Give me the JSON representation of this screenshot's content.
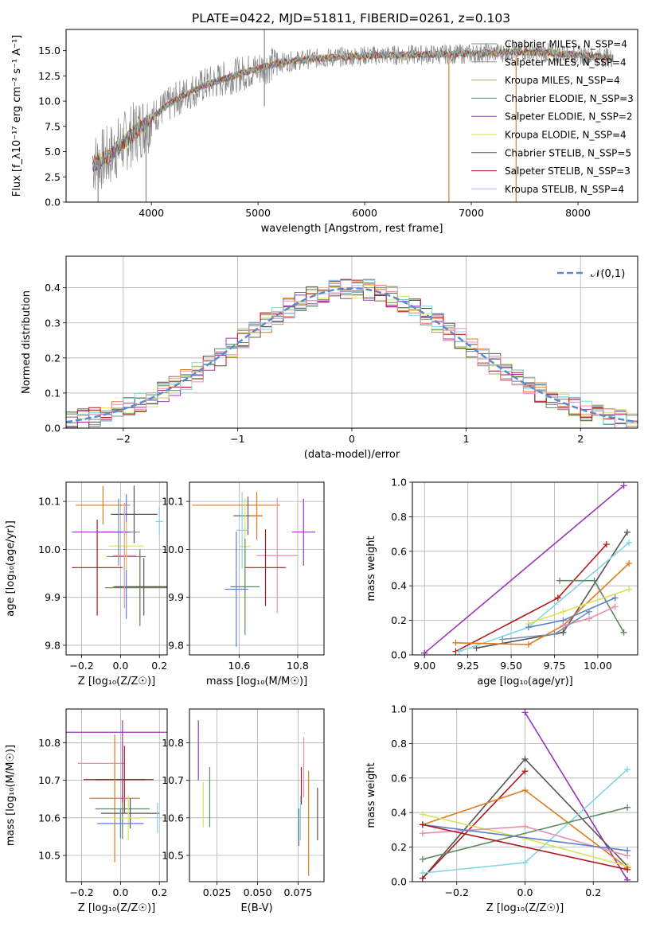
{
  "title": "PLATE=0422, MJD=51811, FIBERID=0261, z=0.103",
  "colors": [
    "#7b8ea8",
    "#e07b20",
    "#b8a26a",
    "#5d8a62",
    "#9b35b8",
    "#d8e35a",
    "#555555",
    "#b01818",
    "#7fd8e0",
    "#e98fae",
    "#5a7fd0",
    "#888888"
  ],
  "chart_data": [
    {
      "id": "spectrum",
      "type": "line",
      "xlabel": "wavelength [Angstrom, rest frame]",
      "ylabel": "Flux [f_λ10⁻¹⁷ erg cm⁻² s⁻¹ A⁻¹]",
      "xlim": [
        3200,
        8560
      ],
      "ylim": [
        0,
        17.1
      ],
      "xticks": [
        4000,
        5000,
        6000,
        7000,
        8000
      ],
      "yticks": [
        0.0,
        2.5,
        5.0,
        7.5,
        10.0,
        12.5,
        15.0
      ],
      "grid": false,
      "legend": [
        "Chabrier MILES, N_SSP=4",
        "Salpeter MILES, N_SSP=4",
        "Kroupa MILES, N_SSP=4",
        "Chabrier ELODIE, N_SSP=3",
        "Salpeter ELODIE, N_SSP=2",
        "Kroupa ELODIE, N_SSP=4",
        "Chabrier STELIB, N_SSP=5",
        "Salpeter STELIB, N_SSP=3",
        "Kroupa STELIB, N_SSP=4"
      ],
      "legend_loc": "lower-right",
      "continuum": {
        "x": [
          3450,
          3600,
          3800,
          3950,
          4100,
          4300,
          4500,
          4800,
          5000,
          5200,
          5500,
          6000,
          6500,
          7000,
          7500,
          8000,
          8300
        ],
        "y": [
          3.8,
          4.5,
          6.5,
          7.8,
          9.2,
          10.6,
          11.6,
          12.6,
          13.2,
          13.8,
          14.2,
          14.5,
          14.6,
          14.7,
          14.9,
          14.6,
          14.3
        ]
      }
    },
    {
      "id": "residuals",
      "type": "histogram",
      "xlabel": "(data-model)/error",
      "ylabel": "Normed distribution",
      "xlim": [
        -2.5,
        2.5
      ],
      "ylim": [
        0,
        0.49
      ],
      "xticks": [
        -2,
        -1,
        0,
        1,
        2
      ],
      "yticks": [
        0.0,
        0.1,
        0.2,
        0.3,
        0.4
      ],
      "grid": true,
      "legend": [
        "𝒩(0,1)"
      ],
      "legend_loc": "top-right",
      "gaussian": {
        "mean": 0,
        "sigma": 1
      }
    },
    {
      "id": "age-vs-Z",
      "type": "errorbar",
      "xlabel": "Z [log₁₀(Z/Z☉)]",
      "ylabel": "age  [log₁₀(age/yr)]",
      "xlim": [
        -0.28,
        0.24
      ],
      "ylim": [
        9.78,
        10.14
      ],
      "xticks": [
        -0.2,
        0.0,
        0.2
      ],
      "yticks": [
        9.8,
        9.9,
        10.0,
        10.1
      ],
      "grid": true,
      "points": [
        {
          "x": 0.1,
          "xerr": 0.14,
          "y": 9.922,
          "yerr": 0.07,
          "c": 1
        },
        {
          "x": 0.1,
          "xerr": 0.18,
          "y": 9.92,
          "yerr": 0.08,
          "c": 3
        },
        {
          "x": 0.12,
          "xerr": 0.15,
          "y": 9.922,
          "yerr": 0.06,
          "c": 6
        },
        {
          "x": 0.03,
          "xerr": 0.1,
          "y": 9.985,
          "yerr": 0.13,
          "c": 10
        },
        {
          "x": -0.12,
          "xerr": 0.13,
          "y": 9.962,
          "yerr": 0.1,
          "c": 7
        },
        {
          "x": -0.09,
          "xerr": 0.14,
          "y": 10.092,
          "yerr": 0.04,
          "c": 1
        },
        {
          "x": 0.07,
          "xerr": 0.12,
          "y": 10.073,
          "yerr": 0.06,
          "c": 6
        },
        {
          "x": 0.03,
          "xerr": 0.09,
          "y": 10.007,
          "yerr": 0.05,
          "c": 5
        },
        {
          "x": 0.2,
          "xerr": 0.02,
          "y": 10.058,
          "yerr": 0.03,
          "c": 8
        },
        {
          "x": -0.01,
          "xerr": 0.11,
          "y": 10.036,
          "yerr": 0.07,
          "c": 0
        },
        {
          "x": -0.1,
          "xerr": 0.15,
          "y": 10.036,
          "yerr": 0.0,
          "c": 4
        },
        {
          "x": 0.02,
          "xerr": 0.06,
          "y": 9.987,
          "yerr": 0.11,
          "c": 9
        }
      ]
    },
    {
      "id": "age-vs-mass",
      "type": "errorbar",
      "xlabel": "mass [log₁₀(M/M☉)]",
      "ylabel": "",
      "xlim": [
        10.43,
        10.89
      ],
      "ylim": [
        9.78,
        10.14
      ],
      "xticks": [
        10.6,
        10.8
      ],
      "yticks": [
        9.8,
        9.9,
        10.0,
        10.1
      ],
      "grid": true,
      "points": [
        {
          "x": 10.59,
          "xerr": 0.15,
          "y": 10.092,
          "yerr": 0.0,
          "c": 1
        },
        {
          "x": 10.63,
          "xerr": 0.05,
          "y": 10.07,
          "yerr": 0.04,
          "c": 6
        },
        {
          "x": 10.66,
          "xerr": 0.02,
          "y": 10.07,
          "yerr": 0.05,
          "c": 1
        },
        {
          "x": 10.62,
          "xerr": 0.02,
          "y": 10.006,
          "yerr": 0.1,
          "c": 5
        },
        {
          "x": 10.73,
          "xerr": 0.07,
          "y": 9.987,
          "yerr": 0.12,
          "c": 9
        },
        {
          "x": 10.82,
          "xerr": 0.04,
          "y": 10.036,
          "yerr": 0.07,
          "c": 4
        },
        {
          "x": 10.69,
          "xerr": 0.07,
          "y": 9.962,
          "yerr": 0.08,
          "c": 7
        },
        {
          "x": 10.62,
          "xerr": 0.05,
          "y": 9.922,
          "yerr": 0.1,
          "c": 3
        },
        {
          "x": 10.59,
          "xerr": 0.04,
          "y": 9.917,
          "yerr": 0.12,
          "c": 10
        },
        {
          "x": 10.61,
          "xerr": 0.02,
          "y": 10.04,
          "yerr": 0.08,
          "c": 8
        }
      ]
    },
    {
      "id": "weight-vs-age",
      "type": "line",
      "xlabel": "age  [log₁₀(age/yr)]",
      "ylabel": "mass weight",
      "xlim": [
        8.93,
        10.23
      ],
      "ylim": [
        0,
        1.0
      ],
      "xticks": [
        9.0,
        9.25,
        9.5,
        9.75,
        10.0
      ],
      "yticks": [
        0.0,
        0.2,
        0.4,
        0.6,
        0.8,
        1.0
      ],
      "grid": true,
      "series": [
        {
          "c": 4,
          "x": [
            9.0,
            10.15
          ],
          "y": [
            0.01,
            0.98
          ]
        },
        {
          "c": 7,
          "x": [
            9.18,
            9.77,
            10.05
          ],
          "y": [
            0.02,
            0.33,
            0.64
          ]
        },
        {
          "c": 6,
          "x": [
            9.3,
            9.8,
            10.17
          ],
          "y": [
            0.04,
            0.13,
            0.71
          ]
        },
        {
          "c": 8,
          "x": [
            9.2,
            9.6,
            10.18
          ],
          "y": [
            0.02,
            0.16,
            0.65
          ]
        },
        {
          "c": 1,
          "x": [
            9.18,
            9.6,
            9.8,
            10.18
          ],
          "y": [
            0.07,
            0.06,
            0.17,
            0.53
          ]
        },
        {
          "c": 3,
          "x": [
            9.78,
            9.98,
            10.15
          ],
          "y": [
            0.43,
            0.43,
            0.13
          ]
        },
        {
          "c": 5,
          "x": [
            9.6,
            9.8,
            10.18
          ],
          "y": [
            0.18,
            0.25,
            0.38
          ]
        },
        {
          "c": 10,
          "x": [
            9.6,
            9.8,
            10.1
          ],
          "y": [
            0.16,
            0.2,
            0.33
          ]
        },
        {
          "c": 9,
          "x": [
            9.8,
            9.95,
            10.1
          ],
          "y": [
            0.17,
            0.21,
            0.28
          ]
        },
        {
          "c": 0,
          "x": [
            9.45,
            9.75,
            9.95
          ],
          "y": [
            0.09,
            0.12,
            0.25
          ]
        }
      ]
    },
    {
      "id": "mass-vs-Z",
      "type": "errorbar",
      "xlabel": "Z [log₁₀(Z/Z☉)]",
      "ylabel": "mass [log₁₀(M/M☉)]",
      "xlim": [
        -0.28,
        0.24
      ],
      "ylim": [
        10.43,
        10.89
      ],
      "xticks": [
        -0.2,
        0.0,
        0.2
      ],
      "yticks": [
        10.5,
        10.6,
        10.7,
        10.8
      ],
      "grid": true,
      "points": [
        {
          "x": -0.02,
          "xerr": 0.26,
          "y": 10.828,
          "yerr": 0.0,
          "c": 4
        },
        {
          "x": -0.1,
          "xerr": 0.12,
          "y": 10.745,
          "yerr": 0.0,
          "c": 9
        },
        {
          "x": -0.03,
          "xerr": 0.16,
          "y": 10.702,
          "yerr": 0.0,
          "c": 7
        },
        {
          "x": 0.02,
          "xerr": 0.15,
          "y": 10.702,
          "yerr": 0.09,
          "c": 7
        },
        {
          "x": -0.03,
          "xerr": 0.13,
          "y": 10.652,
          "yerr": 0.17,
          "c": 1
        },
        {
          "x": 0.01,
          "xerr": 0.14,
          "y": 10.624,
          "yerr": 0.08,
          "c": 3
        },
        {
          "x": 0.05,
          "xerr": 0.15,
          "y": 10.612,
          "yerr": 0.04,
          "c": 6
        },
        {
          "x": 0.04,
          "xerr": 0.09,
          "y": 10.6,
          "yerr": 0.06,
          "c": 5
        },
        {
          "x": 0.0,
          "xerr": 0.12,
          "y": 10.585,
          "yerr": 0.04,
          "c": 10
        },
        {
          "x": 0.19,
          "xerr": 0.01,
          "y": 10.6,
          "yerr": 0.04,
          "c": 8
        },
        {
          "x": 0.01,
          "xerr": 0.0,
          "y": 10.75,
          "yerr": 0.11,
          "c": 4
        }
      ]
    },
    {
      "id": "mass-vs-ebv",
      "type": "errorbar",
      "xlabel": "E(B-V)",
      "ylabel": "",
      "xlim": [
        0.008,
        0.091
      ],
      "ylim": [
        10.43,
        10.89
      ],
      "xticks": [
        0.025,
        0.05,
        0.075
      ],
      "tick_labels": [
        "0.025",
        "0.050",
        "0.075"
      ],
      "yticks": [
        10.5,
        10.6,
        10.7,
        10.8
      ],
      "grid": true,
      "points": [
        {
          "x": 0.0135,
          "xerr": 0,
          "y": 10.78,
          "yerr": 0.08,
          "c": 4
        },
        {
          "x": 0.0165,
          "xerr": 0,
          "y": 10.635,
          "yerr": 0.06,
          "c": 5
        },
        {
          "x": 0.0205,
          "xerr": 0,
          "y": 10.655,
          "yerr": 0.08,
          "c": 3
        },
        {
          "x": 0.0755,
          "xerr": 0,
          "y": 10.575,
          "yerr": 0.05,
          "c": 10
        },
        {
          "x": 0.077,
          "xerr": 0,
          "y": 10.685,
          "yerr": 0.05,
          "c": 7
        },
        {
          "x": 0.0785,
          "xerr": 0,
          "y": 10.735,
          "yerr": 0.08,
          "c": 9
        },
        {
          "x": 0.0815,
          "xerr": 0,
          "y": 10.585,
          "yerr": 0.14,
          "c": 1
        },
        {
          "x": 0.087,
          "xerr": 0,
          "y": 10.61,
          "yerr": 0.07,
          "c": 6
        },
        {
          "x": 0.0765,
          "xerr": 0,
          "y": 10.6,
          "yerr": 0.06,
          "c": 8
        }
      ]
    },
    {
      "id": "weight-vs-Z",
      "type": "line",
      "xlabel": "Z [log₁₀(Z/Z☉)]",
      "ylabel": "mass weight",
      "xlim": [
        -0.33,
        0.33
      ],
      "ylim": [
        0,
        1.0
      ],
      "xticks": [
        -0.2,
        0.0,
        0.2
      ],
      "yticks": [
        0.0,
        0.2,
        0.4,
        0.6,
        0.8,
        1.0
      ],
      "grid": true,
      "series": [
        {
          "c": 4,
          "x": [
            0.0,
            0.3
          ],
          "y": [
            0.98,
            0.01
          ]
        },
        {
          "c": 6,
          "x": [
            -0.3,
            0.0,
            0.3
          ],
          "y": [
            0.02,
            0.71,
            0.09
          ]
        },
        {
          "c": 7,
          "x": [
            -0.3,
            0.0
          ],
          "y": [
            0.02,
            0.64
          ]
        },
        {
          "c": 1,
          "x": [
            -0.3,
            0.0,
            0.3
          ],
          "y": [
            0.33,
            0.53,
            0.08
          ]
        },
        {
          "c": 8,
          "x": [
            -0.3,
            0.0,
            0.3
          ],
          "y": [
            0.05,
            0.11,
            0.65
          ]
        },
        {
          "c": 3,
          "x": [
            -0.3,
            0.3
          ],
          "y": [
            0.13,
            0.43
          ]
        },
        {
          "c": 5,
          "x": [
            -0.3,
            0.0,
            0.3
          ],
          "y": [
            0.39,
            0.25,
            0.09
          ]
        },
        {
          "c": 9,
          "x": [
            -0.3,
            0.0,
            0.3
          ],
          "y": [
            0.28,
            0.32,
            0.15
          ]
        },
        {
          "c": 10,
          "x": [
            -0.3,
            0.3
          ],
          "y": [
            0.33,
            0.18
          ]
        },
        {
          "c": 7,
          "x": [
            -0.3,
            0.3
          ],
          "y": [
            0.33,
            0.07
          ]
        }
      ]
    }
  ]
}
